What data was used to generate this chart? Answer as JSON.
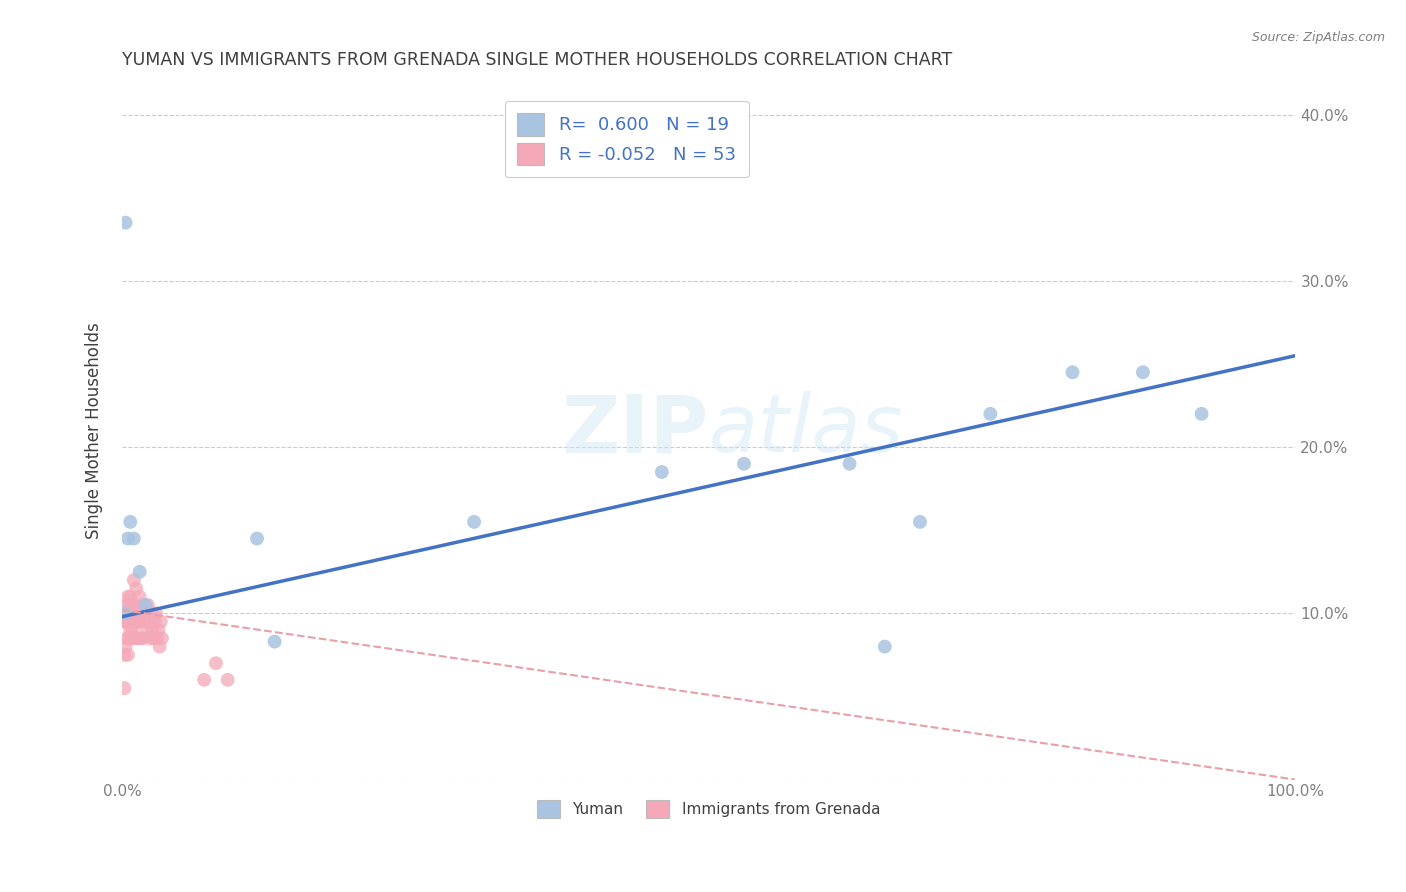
{
  "title": "YUMAN VS IMMIGRANTS FROM GRENADA SINGLE MOTHER HOUSEHOLDS CORRELATION CHART",
  "source": "Source: ZipAtlas.com",
  "xlabel": "",
  "ylabel": "Single Mother Households",
  "watermark": "ZIPatlas",
  "legend_yuman": "Yuman",
  "legend_grenada": "Immigrants from Grenada",
  "R_yuman": 0.6,
  "N_yuman": 19,
  "R_grenada": -0.052,
  "N_grenada": 53,
  "yuman_color": "#a8c4e0",
  "grenada_color": "#f4a8b8",
  "yuman_line_color": "#4472c4",
  "grenada_line_color": "#e8a0a8",
  "xlim": [
    0.0,
    1.0
  ],
  "ylim": [
    0.0,
    0.42
  ],
  "xticks": [
    0.0,
    0.1,
    0.2,
    0.3,
    0.4,
    0.5,
    0.6,
    0.7,
    0.8,
    0.9,
    1.0
  ],
  "yticks": [
    0.0,
    0.1,
    0.2,
    0.3,
    0.4
  ],
  "xticklabels": [
    "0.0%",
    "",
    "",
    "",
    "",
    "",
    "",
    "",
    "",
    "",
    "100.0%"
  ],
  "yticklabels_right": [
    "",
    "10.0%",
    "20.0%",
    "30.0%",
    "40.0%"
  ],
  "yuman_x": [
    0.003,
    0.005,
    0.007,
    0.01,
    0.015,
    0.02,
    0.115,
    0.3,
    0.46,
    0.53,
    0.62,
    0.68,
    0.74,
    0.81,
    0.87,
    0.92,
    0.003,
    0.65,
    0.13
  ],
  "yuman_y": [
    0.335,
    0.145,
    0.155,
    0.145,
    0.125,
    0.105,
    0.145,
    0.155,
    0.185,
    0.19,
    0.19,
    0.155,
    0.22,
    0.245,
    0.245,
    0.22,
    0.1,
    0.08,
    0.083
  ],
  "grenada_x": [
    0.002,
    0.002,
    0.002,
    0.003,
    0.003,
    0.003,
    0.004,
    0.004,
    0.005,
    0.005,
    0.005,
    0.006,
    0.006,
    0.007,
    0.007,
    0.008,
    0.008,
    0.009,
    0.009,
    0.01,
    0.01,
    0.011,
    0.011,
    0.012,
    0.012,
    0.013,
    0.013,
    0.014,
    0.015,
    0.015,
    0.016,
    0.017,
    0.018,
    0.018,
    0.019,
    0.02,
    0.021,
    0.022,
    0.023,
    0.024,
    0.025,
    0.026,
    0.027,
    0.028,
    0.029,
    0.03,
    0.031,
    0.032,
    0.033,
    0.034,
    0.07,
    0.08,
    0.09
  ],
  "grenada_y": [
    0.055,
    0.075,
    0.095,
    0.08,
    0.095,
    0.105,
    0.1,
    0.085,
    0.11,
    0.095,
    0.075,
    0.105,
    0.085,
    0.11,
    0.09,
    0.1,
    0.085,
    0.105,
    0.09,
    0.1,
    0.12,
    0.085,
    0.105,
    0.095,
    0.115,
    0.1,
    0.085,
    0.095,
    0.11,
    0.095,
    0.085,
    0.105,
    0.1,
    0.085,
    0.095,
    0.1,
    0.09,
    0.105,
    0.095,
    0.085,
    0.1,
    0.09,
    0.085,
    0.095,
    0.1,
    0.085,
    0.09,
    0.08,
    0.095,
    0.085,
    0.06,
    0.07,
    0.06
  ],
  "background_color": "#ffffff",
  "grid_color": "#cccccc",
  "title_color": "#404040",
  "tick_color": "#808080",
  "marker_size": 100,
  "line_yuman_x0": 0.0,
  "line_yuman_y0": 0.098,
  "line_yuman_x1": 1.0,
  "line_yuman_y1": 0.255,
  "line_grenada_x0": 0.0,
  "line_grenada_y0": 0.102,
  "line_grenada_x1": 1.0,
  "line_grenada_y1": 0.0
}
